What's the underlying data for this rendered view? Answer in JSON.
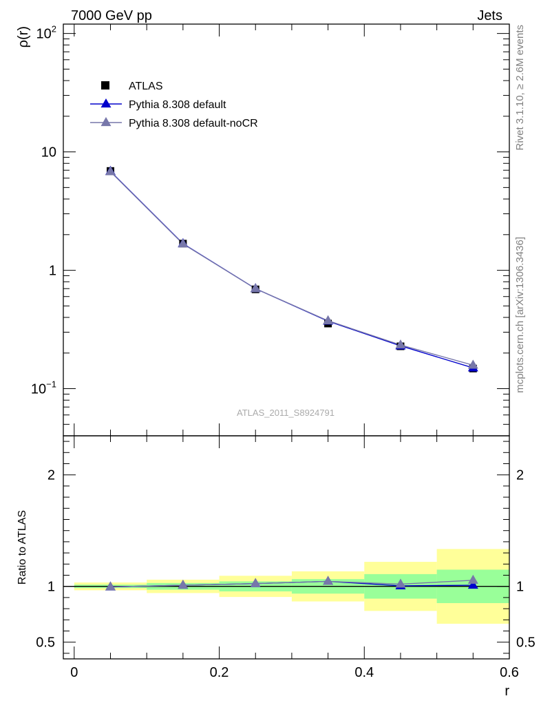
{
  "header": {
    "left_label": "7000 GeV pp",
    "right_label": "Jets"
  },
  "side_labels": {
    "rivet": "Rivet 3.1.10, ≥ 2.6M events",
    "source": "mcplots.cern.ch [arXiv:1306.3436]"
  },
  "watermark": "ATLAS_2011_S8924791",
  "colors": {
    "data": "#000000",
    "default": "#0000cc",
    "nocr": "#7777aa",
    "band_inner": "#99ff99",
    "band_outer": "#ffff99"
  },
  "chart_data": [
    {
      "type": "line",
      "ylabel": "ρ(r)",
      "yscale": "log",
      "ylim": [
        0.04,
        120
      ],
      "xlim": [
        -0.015,
        0.6
      ],
      "yticks": [
        {
          "value": 0.1,
          "base": "10",
          "exp": "−1"
        },
        {
          "value": 1,
          "label": "1"
        },
        {
          "value": 10,
          "label": "10"
        },
        {
          "value": 100,
          "base": "10",
          "exp": "2"
        }
      ],
      "legend": {
        "position": "top-left",
        "entries": [
          {
            "key": "data",
            "label": "ATLAS"
          },
          {
            "key": "default",
            "label": "Pythia 8.308 default"
          },
          {
            "key": "nocr",
            "label": "Pythia 8.308 default-noCR"
          }
        ]
      },
      "x": [
        0.05,
        0.15,
        0.25,
        0.35,
        0.45,
        0.55
      ],
      "series": [
        {
          "name": "ATLAS",
          "key": "data",
          "values": [
            6.9,
            1.68,
            0.69,
            0.355,
            0.228,
            0.148
          ]
        },
        {
          "name": "Pythia 8.308 default",
          "key": "default",
          "values": [
            6.85,
            1.68,
            0.7,
            0.372,
            0.23,
            0.15
          ]
        },
        {
          "name": "Pythia 8.308 default-noCR",
          "key": "nocr",
          "values": [
            6.8,
            1.67,
            0.7,
            0.375,
            0.234,
            0.158
          ]
        }
      ]
    },
    {
      "type": "line",
      "ylabel": "Ratio to ATLAS",
      "xlabel": "r",
      "ylim": [
        0.35,
        2.35
      ],
      "xlim": [
        -0.015,
        0.6
      ],
      "yticks": [
        0.5,
        1,
        2
      ],
      "xticks": [
        0,
        0.2,
        0.4,
        0.6
      ],
      "xtick_labels": [
        "0",
        "0.2",
        "0.4",
        "0.6"
      ],
      "bins": [
        {
          "lo": 0.0,
          "hi": 0.1,
          "inner": [
            0.985,
            1.015
          ],
          "outer": [
            0.965,
            1.035
          ]
        },
        {
          "lo": 0.1,
          "hi": 0.2,
          "inner": [
            0.97,
            1.03
          ],
          "outer": [
            0.94,
            1.06
          ]
        },
        {
          "lo": 0.2,
          "hi": 0.3,
          "inner": [
            0.955,
            1.045
          ],
          "outer": [
            0.905,
            1.095
          ]
        },
        {
          "lo": 0.3,
          "hi": 0.4,
          "inner": [
            0.935,
            1.065
          ],
          "outer": [
            0.865,
            1.135
          ]
        },
        {
          "lo": 0.4,
          "hi": 0.5,
          "inner": [
            0.89,
            1.11
          ],
          "outer": [
            0.78,
            1.22
          ]
        },
        {
          "lo": 0.5,
          "hi": 0.6,
          "inner": [
            0.85,
            1.15
          ],
          "outer": [
            0.665,
            1.335
          ]
        }
      ],
      "x": [
        0.05,
        0.15,
        0.25,
        0.35,
        0.45,
        0.55
      ],
      "series": [
        {
          "name": "Pythia 8.308 default",
          "key": "default",
          "values": [
            0.995,
            1.01,
            1.025,
            1.045,
            1.005,
            1.01
          ]
        },
        {
          "name": "Pythia 8.308 default-noCR",
          "key": "nocr",
          "values": [
            0.995,
            1.01,
            1.025,
            1.045,
            1.02,
            1.055
          ]
        }
      ]
    }
  ]
}
